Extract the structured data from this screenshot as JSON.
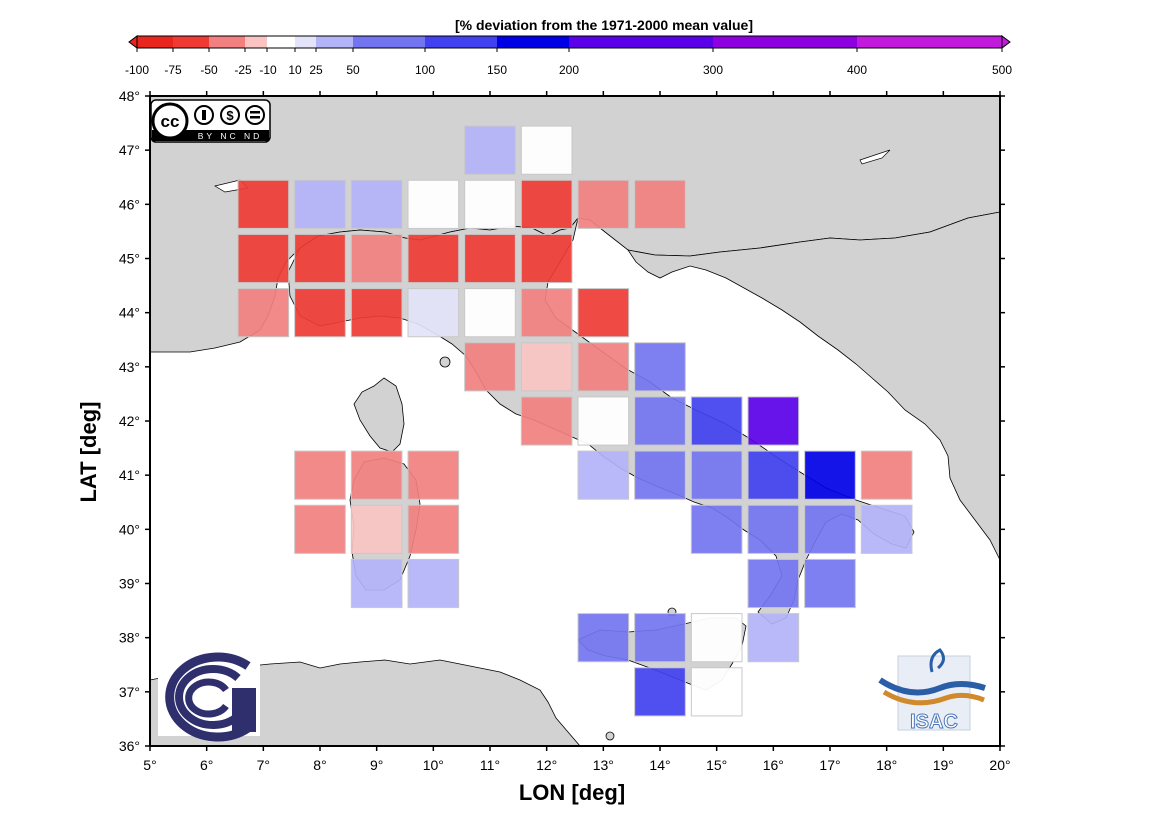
{
  "colorbar": {
    "title": "[% deviation from the 1971-2000 mean value]",
    "tick_labels": [
      "-100",
      "-75",
      "-50",
      "-25",
      "-10",
      "10",
      "25",
      "50",
      "100",
      "150",
      "200",
      "300",
      "400",
      "500"
    ],
    "tick_values": [
      -100,
      -75,
      -50,
      -25,
      -10,
      10,
      25,
      50,
      100,
      150,
      200,
      300,
      400,
      500
    ],
    "segments": [
      {
        "from": -100,
        "to": -75,
        "color": "#e8261e"
      },
      {
        "from": -75,
        "to": -50,
        "color": "#ef3b34"
      },
      {
        "from": -50,
        "to": -25,
        "color": "#f28080"
      },
      {
        "from": -25,
        "to": -10,
        "color": "#f9c4c2"
      },
      {
        "from": -10,
        "to": 10,
        "color": "#ffffff"
      },
      {
        "from": 10,
        "to": 25,
        "color": "#e3e3fa"
      },
      {
        "from": 25,
        "to": 50,
        "color": "#b3b3f8"
      },
      {
        "from": 50,
        "to": 100,
        "color": "#7374ef"
      },
      {
        "from": 100,
        "to": 150,
        "color": "#4141f0"
      },
      {
        "from": 150,
        "to": 200,
        "color": "#0000e6"
      },
      {
        "from": 200,
        "to": 300,
        "color": "#5a00e8"
      },
      {
        "from": 300,
        "to": 400,
        "color": "#8e00e0"
      },
      {
        "from": 400,
        "to": 500,
        "color": "#c21adc"
      }
    ]
  },
  "axes": {
    "xlabel": "LON [deg]",
    "ylabel": "LAT [deg]",
    "xticks": [
      "5°",
      "6°",
      "7°",
      "8°",
      "9°",
      "10°",
      "11°",
      "12°",
      "13°",
      "14°",
      "15°",
      "16°",
      "17°",
      "18°",
      "19°",
      "20°"
    ],
    "yticks": [
      "36°",
      "37°",
      "38°",
      "39°",
      "40°",
      "41°",
      "42°",
      "43°",
      "44°",
      "45°",
      "46°",
      "47°",
      "48°"
    ],
    "xlim": [
      5,
      20
    ],
    "ylim": [
      36,
      48
    ]
  },
  "logos": {
    "license": {
      "text": "cc",
      "sub": "BY NC ND"
    },
    "isac": "ISAC"
  },
  "map_colors": {
    "land": "#d2d2d2",
    "sea": "#ffffff",
    "gap": "#c8c8c8"
  },
  "chart_data": {
    "type": "heatmap",
    "value_meaning": "% deviation from the 1971-2000 mean value",
    "cells": [
      {
        "lon": 11,
        "lat": 47,
        "color": "#b3b3f8"
      },
      {
        "lon": 12,
        "lat": 47,
        "color": "#ffffff"
      },
      {
        "lon": 7,
        "lat": 46,
        "color": "#ef3b34"
      },
      {
        "lon": 8,
        "lat": 46,
        "color": "#b3b3f8"
      },
      {
        "lon": 9,
        "lat": 46,
        "color": "#b3b3f8"
      },
      {
        "lon": 10,
        "lat": 46,
        "color": "#ffffff"
      },
      {
        "lon": 11,
        "lat": 46,
        "color": "#ffffff"
      },
      {
        "lon": 12,
        "lat": 46,
        "color": "#ef3b34"
      },
      {
        "lon": 13,
        "lat": 46,
        "color": "#f28080"
      },
      {
        "lon": 14,
        "lat": 46,
        "color": "#f28080"
      },
      {
        "lon": 7,
        "lat": 45,
        "color": "#ef3b34"
      },
      {
        "lon": 8,
        "lat": 45,
        "color": "#ef3b34"
      },
      {
        "lon": 9,
        "lat": 45,
        "color": "#f28080"
      },
      {
        "lon": 10,
        "lat": 45,
        "color": "#ef3b34"
      },
      {
        "lon": 11,
        "lat": 45,
        "color": "#ef3b34"
      },
      {
        "lon": 12,
        "lat": 45,
        "color": "#ef3b34"
      },
      {
        "lon": 7,
        "lat": 44,
        "color": "#f28080"
      },
      {
        "lon": 8,
        "lat": 44,
        "color": "#ef3b34"
      },
      {
        "lon": 9,
        "lat": 44,
        "color": "#ef3b34"
      },
      {
        "lon": 10,
        "lat": 44,
        "color": "#e3e3fa"
      },
      {
        "lon": 11,
        "lat": 44,
        "color": "#ffffff"
      },
      {
        "lon": 12,
        "lat": 44,
        "color": "#f28080"
      },
      {
        "lon": 13,
        "lat": 44,
        "color": "#ef3b34"
      },
      {
        "lon": 11,
        "lat": 43,
        "color": "#f28080"
      },
      {
        "lon": 12,
        "lat": 43,
        "color": "#f9c4c2"
      },
      {
        "lon": 13,
        "lat": 43,
        "color": "#f28080"
      },
      {
        "lon": 14,
        "lat": 43,
        "color": "#7374ef"
      },
      {
        "lon": 12,
        "lat": 42,
        "color": "#f28080"
      },
      {
        "lon": 13,
        "lat": 42,
        "color": "#ffffff"
      },
      {
        "lon": 14,
        "lat": 42,
        "color": "#7374ef"
      },
      {
        "lon": 15,
        "lat": 42,
        "color": "#4141f0"
      },
      {
        "lon": 16,
        "lat": 42,
        "color": "#5a00e8"
      },
      {
        "lon": 8,
        "lat": 41,
        "color": "#f28080"
      },
      {
        "lon": 9,
        "lat": 41,
        "color": "#f28080"
      },
      {
        "lon": 10,
        "lat": 41,
        "color": "#f28080"
      },
      {
        "lon": 13,
        "lat": 41,
        "color": "#b3b3f8"
      },
      {
        "lon": 14,
        "lat": 41,
        "color": "#7374ef"
      },
      {
        "lon": 15,
        "lat": 41,
        "color": "#7374ef"
      },
      {
        "lon": 16,
        "lat": 41,
        "color": "#4141f0"
      },
      {
        "lon": 17,
        "lat": 41,
        "color": "#0000e6"
      },
      {
        "lon": 18,
        "lat": 41,
        "color": "#f28080"
      },
      {
        "lon": 8,
        "lat": 40,
        "color": "#f28080"
      },
      {
        "lon": 9,
        "lat": 40,
        "color": "#f9c4c2"
      },
      {
        "lon": 10,
        "lat": 40,
        "color": "#f28080"
      },
      {
        "lon": 15,
        "lat": 40,
        "color": "#7374ef"
      },
      {
        "lon": 16,
        "lat": 40,
        "color": "#7374ef"
      },
      {
        "lon": 17,
        "lat": 40,
        "color": "#7374ef"
      },
      {
        "lon": 18,
        "lat": 40,
        "color": "#b3b3f8"
      },
      {
        "lon": 9,
        "lat": 39,
        "color": "#b3b3f8"
      },
      {
        "lon": 10,
        "lat": 39,
        "color": "#b3b3f8"
      },
      {
        "lon": 16,
        "lat": 39,
        "color": "#7374ef"
      },
      {
        "lon": 17,
        "lat": 39,
        "color": "#7374ef"
      },
      {
        "lon": 13,
        "lat": 38,
        "color": "#7374ef"
      },
      {
        "lon": 14,
        "lat": 38,
        "color": "#7374ef"
      },
      {
        "lon": 15,
        "lat": 38,
        "color": "#ffffff"
      },
      {
        "lon": 16,
        "lat": 38,
        "color": "#b3b3f8"
      },
      {
        "lon": 14,
        "lat": 37,
        "color": "#4141f0"
      },
      {
        "lon": 15,
        "lat": 37,
        "color": "#ffffff"
      }
    ]
  }
}
